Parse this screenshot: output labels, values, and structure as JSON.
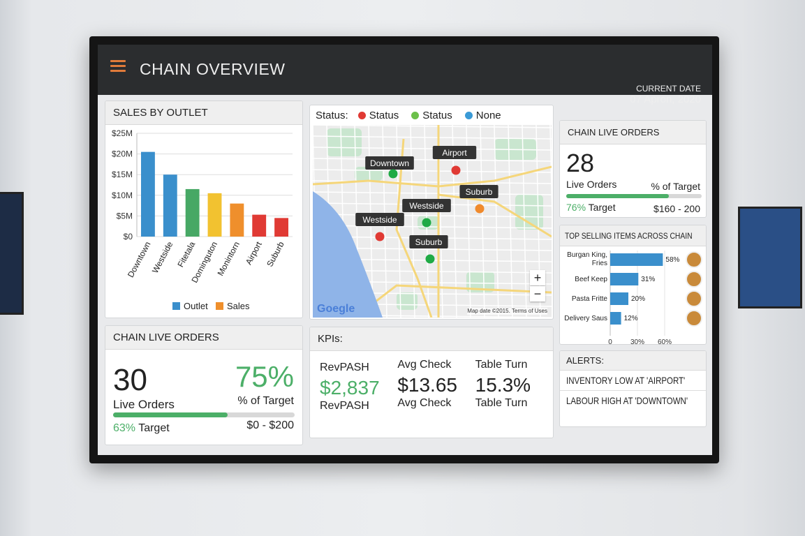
{
  "header": {
    "title": "CHAIN OVERVIEW",
    "date_label": "CURRENT DATE",
    "date_value": "07 Apron, 2020"
  },
  "sales": {
    "title": "SALES BY OUTLET"
  },
  "chart_data": {
    "type": "bar",
    "title": "SALES BY OUTLET",
    "categories": [
      "Downtown",
      "Westside",
      "Fitetala",
      "Dominguton",
      "Monintorn",
      "Airport",
      "Suburb"
    ],
    "values": [
      20.5,
      15,
      11.5,
      10.5,
      8,
      5.3,
      4.5
    ],
    "colors": [
      "#3a8fcc",
      "#3a8fcc",
      "#47a865",
      "#f2c230",
      "#ef8f2c",
      "#e03a34",
      "#e03a34"
    ],
    "ylim": [
      0,
      25
    ],
    "yticks": [
      "$0",
      "$5M",
      "$10M",
      "$15M",
      "$20M",
      "$25M"
    ],
    "grid": true,
    "legend": [
      {
        "name": "Outlet",
        "color": "#3a8fcc"
      },
      {
        "name": "Sales",
        "color": "#ef8f2c"
      }
    ],
    "legend_position": "bottom"
  },
  "live_left": {
    "title": "CHAIN LIVE ORDERS",
    "count": "30",
    "count_label": "Live Orders",
    "pct": "75%",
    "pct_label": "% of Target",
    "progress": 0.63,
    "target_pct": "63%",
    "target_label": "Target",
    "range": "$0 - $200"
  },
  "map": {
    "status_label": "Status:",
    "legend": [
      {
        "label": "Status",
        "color": "#e03a34"
      },
      {
        "label": "Status",
        "color": "#6cc04a"
      },
      {
        "label": "None",
        "color": "#3a9ad6"
      }
    ],
    "pins": [
      {
        "label": "Downtown",
        "color": "#1faa45"
      },
      {
        "label": "Airport",
        "color": "#e03a34"
      },
      {
        "label": "Suburb",
        "color": "#f08a2c"
      },
      {
        "label": "Westside",
        "color": "#1faa45"
      },
      {
        "label": "Westside",
        "color": "#e03a34"
      },
      {
        "label": "Suburb",
        "color": "#1faa45"
      }
    ],
    "zoom_in": "+",
    "zoom_out": "−",
    "logo": "Goegle",
    "attribution": "Map date ©2015. Terms of Uses"
  },
  "kpis": {
    "title": "KPIs:",
    "items": [
      {
        "label": "RevPASH",
        "value": "$2,837",
        "sub": "RevPASH"
      },
      {
        "label": "Avg Check",
        "value": "$13.65",
        "sub": "Avg Check"
      },
      {
        "label": "Table Turn",
        "value": "15.3%",
        "sub": "Table Turn"
      }
    ]
  },
  "live_right": {
    "title": "CHAIN LIVE ORDERS",
    "count": "28",
    "count_label": "Live Orders",
    "pct_label": "% of Target",
    "progress": 0.76,
    "target_pct": "76%",
    "target_label": "Target",
    "range": "$160 - 200"
  },
  "top_items": {
    "title": "TOP SELLING ITEMS ACROSS CHAIN",
    "items": [
      {
        "name": "Burgan King,",
        "name2": "Fries",
        "value": 58,
        "label": "58%"
      },
      {
        "name": "Beef Keep",
        "value": 31,
        "label": "31%"
      },
      {
        "name": "Pasta Fritte",
        "value": 20,
        "label": "20%"
      },
      {
        "name": "Delivery Saus",
        "value": 12,
        "label": "12%"
      }
    ],
    "xticks": [
      "0",
      "30%",
      "60%"
    ]
  },
  "alerts": {
    "title": "ALERTS:",
    "items": [
      "INVENTORY LOW AT 'AIRPORT'",
      "LABOUR HIGH AT 'DOWNTOWN'"
    ]
  }
}
